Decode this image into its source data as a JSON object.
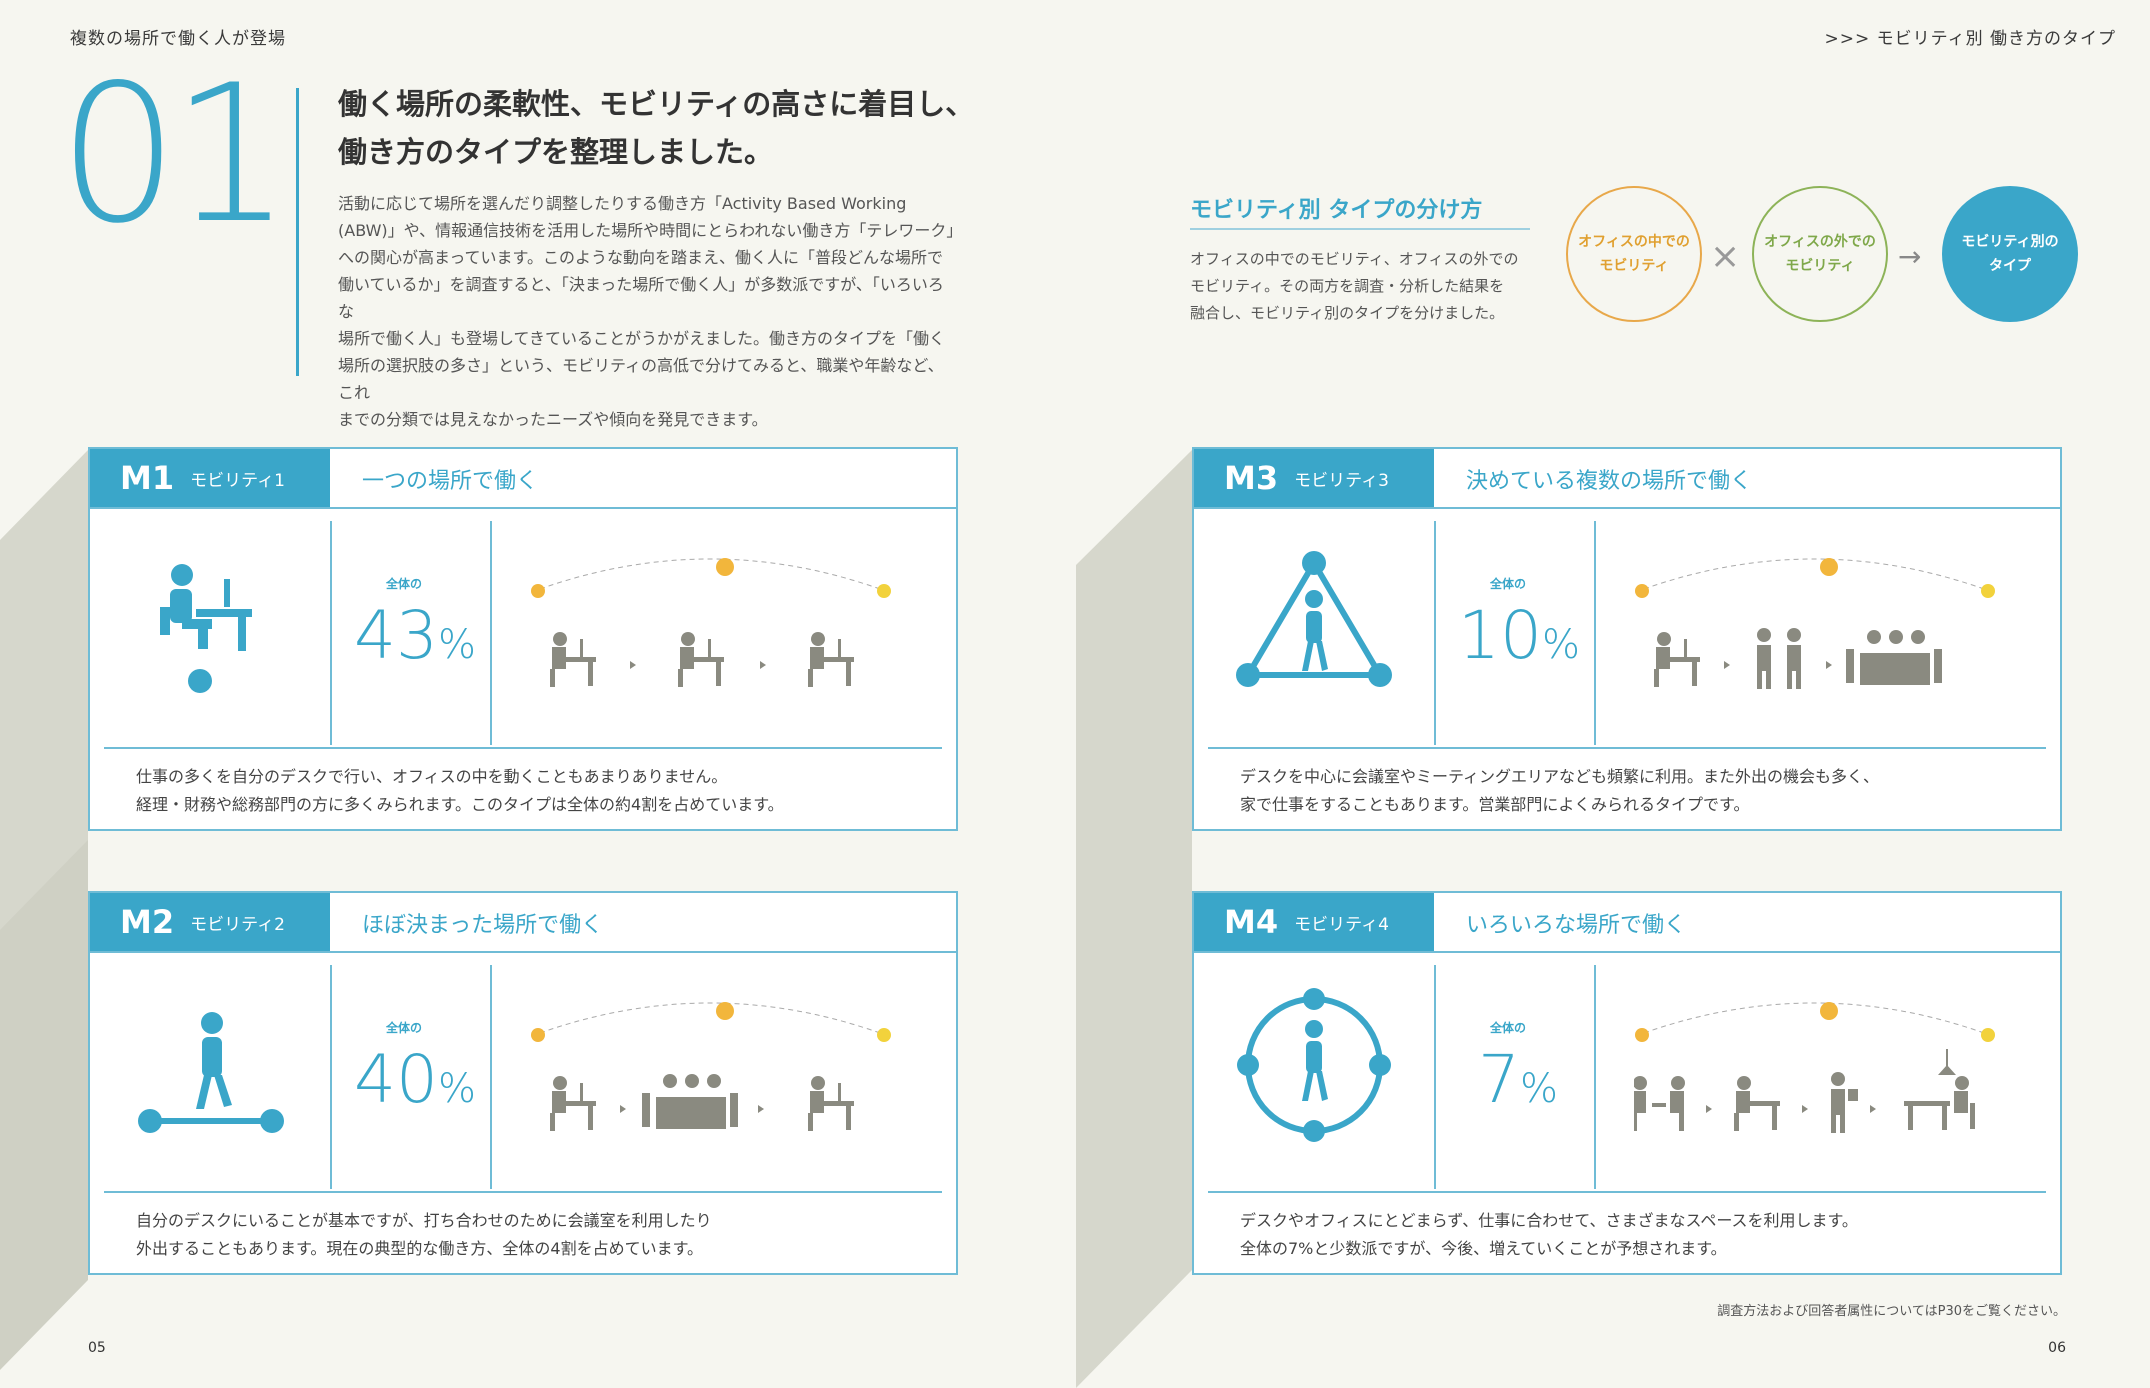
{
  "header": {
    "left": "複数の場所で働く人が登場",
    "right": ">>> モビリティ別 働き方のタイプ"
  },
  "section_number": "01",
  "headline": {
    "line1": "働く場所の柔軟性、モビリティの高さに着目し、",
    "line2": "働き方のタイプを整理しました。"
  },
  "intro": [
    "活動に応じて場所を選んだり調整したりする働き方「Activity Based Working",
    "(ABW)」や、情報通信技術を活用した場所や時間にとらわれない働き方「テレワーク」",
    "への関心が高まっています。このような動向を踏まえ、働く人に「普段どんな場所で",
    "働いているか」を調査すると、「決まった場所で働く人」が多数派ですが、「いろいろな",
    "場所で働く人」も登場してきていることがうかがえました。働き方のタイプを「働く",
    "場所の選択肢の多さ」という、モビリティの高低で分けてみると、職業や年齢など、これ",
    "までの分類では見えなかったニーズや傾向を発見できます。"
  ],
  "mobility": {
    "title": "モビリティ別 タイプの分け方",
    "desc": [
      "オフィスの中でのモビリティ、オフィスの外での",
      "モビリティ。その両方を調査・分析した結果を",
      "融合し、モビリティ別のタイプを分けました。"
    ],
    "circle1": [
      "オフィスの中での",
      "モビリティ"
    ],
    "circle2": [
      "オフィスの外での",
      "モビリティ"
    ],
    "circle3": [
      "モビリティ別の",
      "タイプ"
    ],
    "times": "×",
    "arrow": "→"
  },
  "percent_label": "全体の",
  "percent_sign": "%",
  "cards": [
    {
      "code": "M1",
      "sub": "モビリティ1",
      "title": "一つの場所で働く",
      "percent": "43",
      "desc": [
        "仕事の多くを自分のデスクで行い、オフィスの中を動くこともあまりありません。",
        "経理・財務や総務部門の方に多くみられます。このタイプは全体の約4割を占めています。"
      ]
    },
    {
      "code": "M2",
      "sub": "モビリティ2",
      "title": "ほぼ決まった場所で働く",
      "percent": "40",
      "desc": [
        "自分のデスクにいることが基本ですが、打ち合わせのために会議室を利用したり",
        "外出することもあります。現在の典型的な働き方、全体の4割を占めています。"
      ]
    },
    {
      "code": "M3",
      "sub": "モビリティ3",
      "title": "決めている複数の場所で働く",
      "percent": "10",
      "desc": [
        "デスクを中心に会議室やミーティングエリアなども頻繁に利用。また外出の機会も多く、",
        "家で仕事をすることもあります。営業部門によくみられるタイプです。"
      ]
    },
    {
      "code": "M4",
      "sub": "モビリティ4",
      "title": "いろいろな場所で働く",
      "percent": "7",
      "desc": [
        "デスクやオフィスにとどまらず、仕事に合わせて、さまざまなスペースを利用します。",
        "全体の7%と少数派ですが、今後、増えていくことが予想されます。"
      ]
    }
  ],
  "footnote": "調査方法および回答者属性についてはP30をご覧ください。",
  "page_left": "05",
  "page_right": "06",
  "colors": {
    "accent": "#3aa6c9",
    "orange": "#e8a84a",
    "green": "#8db358",
    "gray": "#8a8a80"
  }
}
